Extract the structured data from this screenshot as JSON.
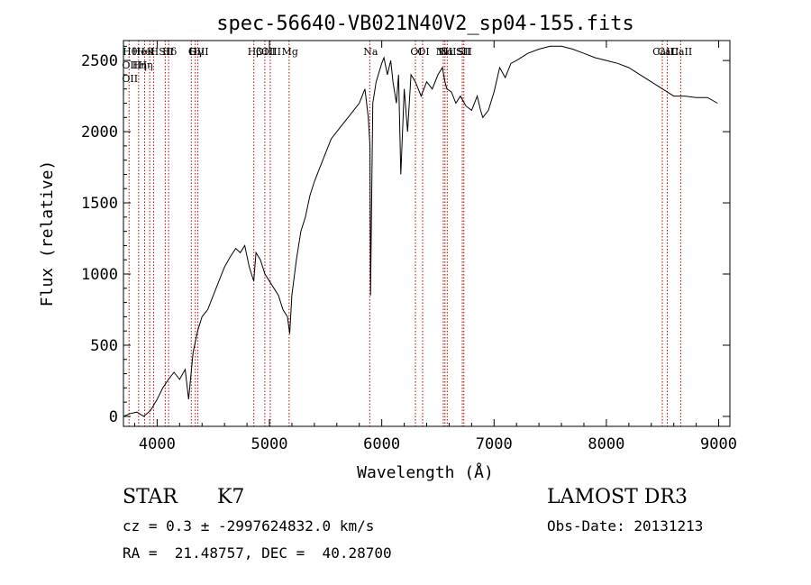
{
  "chart_data": {
    "type": "line",
    "title": "spec-56640-VB021N40V2_sp04-155.fits",
    "xlabel": "Wavelength (Å)",
    "ylabel": "Flux (relative)",
    "xlim": [
      3700,
      9100
    ],
    "ylim": [
      -70,
      2640
    ],
    "xticks": [
      4000,
      5000,
      6000,
      7000,
      8000,
      9000
    ],
    "yticks": [
      0,
      500,
      1000,
      1500,
      2000,
      2500
    ],
    "grid": false,
    "line_color": "#000000",
    "marker_color": "#c00000",
    "spectrum": {
      "x": [
        3700,
        3760,
        3820,
        3880,
        3940,
        4000,
        4050,
        4100,
        4150,
        4200,
        4250,
        4280,
        4320,
        4360,
        4400,
        4450,
        4500,
        4550,
        4600,
        4650,
        4700,
        4740,
        4780,
        4820,
        4860,
        4880,
        4920,
        4960,
        5000,
        5040,
        5080,
        5120,
        5160,
        5180,
        5200,
        5240,
        5280,
        5320,
        5360,
        5400,
        5450,
        5500,
        5550,
        5600,
        5650,
        5700,
        5750,
        5800,
        5850,
        5880,
        5895,
        5900,
        5920,
        5950,
        6000,
        6020,
        6050,
        6080,
        6100,
        6130,
        6150,
        6170,
        6200,
        6230,
        6260,
        6300,
        6350,
        6400,
        6450,
        6500,
        6540,
        6563,
        6580,
        6620,
        6660,
        6700,
        6750,
        6800,
        6850,
        6880,
        6900,
        6950,
        7000,
        7050,
        7100,
        7150,
        7200,
        7300,
        7400,
        7500,
        7600,
        7700,
        7800,
        7900,
        8000,
        8100,
        8200,
        8300,
        8400,
        8500,
        8600,
        8700,
        8800,
        8900,
        8990
      ],
      "y": [
        0,
        20,
        30,
        0,
        40,
        120,
        200,
        260,
        310,
        260,
        330,
        120,
        450,
        600,
        700,
        750,
        850,
        950,
        1050,
        1120,
        1180,
        1150,
        1200,
        1050,
        950,
        1150,
        1100,
        1000,
        950,
        900,
        850,
        750,
        700,
        580,
        850,
        1100,
        1300,
        1400,
        1550,
        1650,
        1750,
        1850,
        1950,
        2000,
        2050,
        2100,
        2150,
        2200,
        2300,
        2100,
        1900,
        850,
        2200,
        2350,
        2480,
        2520,
        2400,
        2500,
        2350,
        2200,
        2400,
        1700,
        2300,
        2000,
        2400,
        2350,
        2250,
        2350,
        2300,
        2400,
        2450,
        2350,
        2300,
        2280,
        2200,
        2250,
        2180,
        2150,
        2250,
        2150,
        2100,
        2150,
        2280,
        2450,
        2380,
        2480,
        2500,
        2550,
        2580,
        2600,
        2600,
        2580,
        2550,
        2520,
        2500,
        2480,
        2450,
        2400,
        2350,
        2300,
        2250,
        2250,
        2240,
        2240,
        2200
      ]
    },
    "lines": [
      {
        "wl": 3750,
        "labels": [
          "H$\\theta$",
          "OII",
          "OII"
        ]
      },
      {
        "wl": 3835,
        "labels": [
          "He",
          "H$\\eta$"
        ]
      },
      {
        "wl": 3889,
        "labels": [
          "HeI",
          "H$\\eta$"
        ]
      },
      {
        "wl": 3934,
        "labels": [
          "K"
        ]
      },
      {
        "wl": 3968,
        "labels": [
          "H"
        ]
      },
      {
        "wl": 4072,
        "labels": [
          "SII"
        ]
      },
      {
        "wl": 4102,
        "labels": [
          "H$\\delta$"
        ]
      },
      {
        "wl": 4304,
        "labels": [
          "G"
        ]
      },
      {
        "wl": 4340,
        "labels": [
          "H$\\gamma$"
        ]
      },
      {
        "wl": 4363,
        "labels": [
          "OIII"
        ]
      },
      {
        "wl": 4861,
        "labels": [
          "H$\\beta$"
        ]
      },
      {
        "wl": 4959,
        "labels": [
          "OIII"
        ]
      },
      {
        "wl": 5007,
        "labels": [
          "OIII"
        ]
      },
      {
        "wl": 5175,
        "labels": [
          "Mg"
        ]
      },
      {
        "wl": 5893,
        "labels": [
          "Na"
        ]
      },
      {
        "wl": 6300,
        "labels": [
          "OI"
        ]
      },
      {
        "wl": 6364,
        "labels": [
          "OI"
        ]
      },
      {
        "wl": 6548,
        "labels": [
          "NII"
        ]
      },
      {
        "wl": 6563,
        "labels": [
          "H$\\alpha$"
        ]
      },
      {
        "wl": 6583,
        "labels": [
          "NII"
        ]
      },
      {
        "wl": 6717,
        "labels": [
          "SII"
        ]
      },
      {
        "wl": 6731,
        "labels": [
          "SII"
        ]
      },
      {
        "wl": 8498,
        "labels": [
          "CaII"
        ]
      },
      {
        "wl": 8542,
        "labels": [
          "CaII"
        ]
      },
      {
        "wl": 8662,
        "labels": [
          "CaII"
        ]
      }
    ]
  },
  "info": {
    "class": "STAR",
    "subclass": "K7",
    "survey": "LAMOST DR3",
    "cz": "cz = 0.3 ± -2997624832.0 km/s",
    "obs_date": "Obs-Date: 20131213",
    "radec": "RA =  21.48757, DEC =  40.28700"
  }
}
